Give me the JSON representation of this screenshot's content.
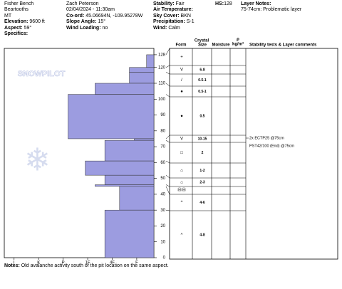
{
  "header": {
    "site": "Fisher Bench",
    "range": "Beartooths",
    "state": "MT",
    "elevation": {
      "label": "Elevation:",
      "value": "9600 ft"
    },
    "aspect": {
      "label": "Aspect:",
      "value": "59°"
    },
    "specifics": "Specifics:",
    "observer": "Zach Peterson",
    "datetime": "02/04/2024 - 11:30am",
    "coord": {
      "label": "Co-ord:",
      "value": "45.06694N, -109.95278W"
    },
    "slope": {
      "label": "Slope Angle:",
      "value": "15°"
    },
    "wind_loading": {
      "label": "Wind Loading:",
      "value": "no"
    },
    "stability": {
      "label": "Stability:",
      "value": "Fair"
    },
    "air_temp": "Air Temperature:",
    "sky": {
      "label": "Sky Cover:",
      "value": "BKN"
    },
    "precip": {
      "label": "Precipitation:",
      "value": "S-1"
    },
    "wind": {
      "label": "Wind:",
      "value": "Calm"
    },
    "hs": {
      "label": "HS:",
      "value": "128"
    },
    "layer_notes": "Layer Notes:",
    "layer_note": "75-74cm: Problematic layer"
  },
  "chart_data": {
    "type": "snow-profile",
    "watermark": "SNOWPILOT",
    "color": "#9c9ce0",
    "ylim": [
      0,
      132
    ],
    "yticks": [
      0,
      10,
      20,
      30,
      40,
      50,
      60,
      70,
      80,
      90,
      100,
      110,
      120,
      128
    ],
    "xlim": [
      6.4,
      0.3
    ],
    "xticks": [
      {
        "value": 6,
        "label": "I"
      },
      {
        "value": 5,
        "label": "K"
      },
      {
        "value": 4,
        "label": "P"
      },
      {
        "value": 3,
        "label": "1F"
      },
      {
        "value": 2,
        "label": "4F"
      },
      {
        "value": 1,
        "label": "F"
      }
    ],
    "columns": {
      "crystal": "Crystal",
      "form": "Form",
      "size": "Size",
      "moisture": "Moisture",
      "rho": "ρ",
      "density": "kg/m³",
      "comments": "Stability tests & Layer comments"
    },
    "layers": [
      {
        "top": 128,
        "bottom": 120,
        "hardness": 0.6,
        "form": "+"
      },
      {
        "top": 120,
        "bottom": 117,
        "hardness": 1.3,
        "form": "V",
        "size": "6-8"
      },
      {
        "top": 117,
        "bottom": 110,
        "hardness": 1.3,
        "form": "/",
        "size": "0.5-1"
      },
      {
        "top": 110,
        "bottom": 103,
        "hardness": 2.7,
        "form": "●",
        "size": "0.5-1"
      },
      {
        "top": 103,
        "bottom": 75,
        "hardness": 3.8,
        "form": "●",
        "size": "0.5"
      },
      {
        "top": 75,
        "bottom": 74,
        "hardness": 1.1,
        "form": "V",
        "size": "10-15"
      },
      {
        "top": 74,
        "bottom": 61,
        "hardness": 2.3,
        "form": "□",
        "size": "2"
      },
      {
        "top": 61,
        "bottom": 52,
        "hardness": 3.1,
        "form": "⌂",
        "size": "1-2"
      },
      {
        "top": 52,
        "bottom": 46,
        "hardness": 2.3,
        "form": "⌂",
        "size": "2-3"
      },
      {
        "top": 46,
        "bottom": 45,
        "hardness": 2.7,
        "form": "ⓂⓂ"
      },
      {
        "top": 45,
        "bottom": 30,
        "hardness": 1.7,
        "form": "^",
        "size": "4-6"
      },
      {
        "top": 30,
        "bottom": 0,
        "hardness": 2.3,
        "form": "^",
        "size": "4-8"
      }
    ],
    "tests": [
      "2x ECTP25 @75cm",
      "PST42/100 (End) @75cm"
    ]
  },
  "notes": {
    "label": "Notes:",
    "text": "Old avalanche activity south of the pit location on the same aspect."
  }
}
